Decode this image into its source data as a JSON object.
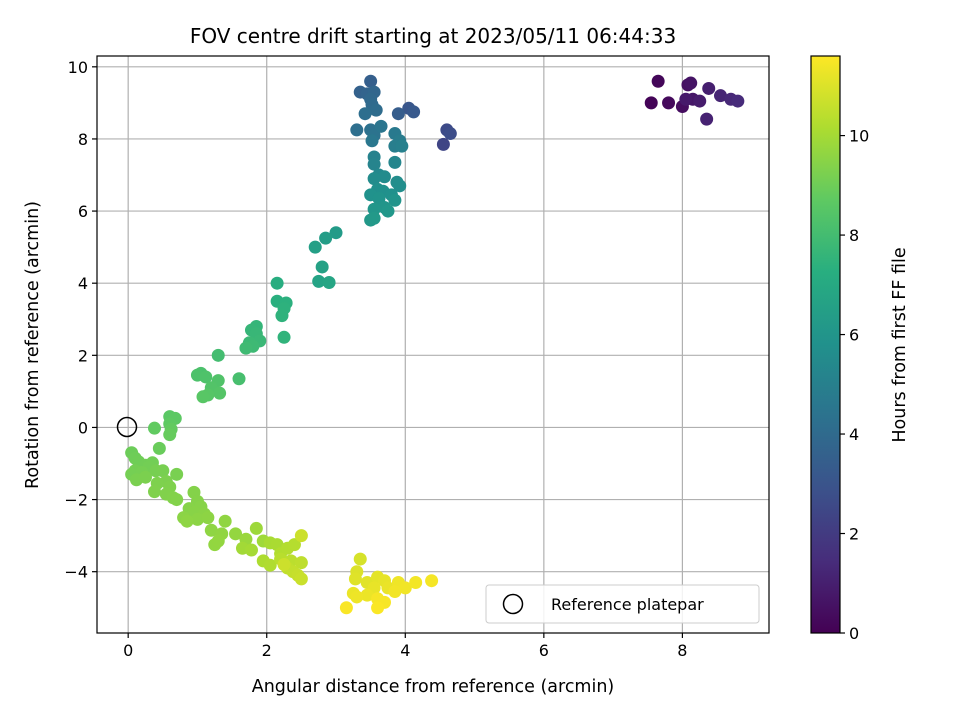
{
  "chart_data": {
    "type": "scatter",
    "title": "FOV centre drift starting at 2023/05/11 06:44:33",
    "xlabel": "Angular distance from reference (arcmin)",
    "ylabel": "Rotation from reference (arcmin)",
    "xlim": [
      -0.45,
      9.25
    ],
    "ylim": [
      -5.7,
      10.3
    ],
    "xticks": [
      0,
      2,
      4,
      6,
      8
    ],
    "yticks": [
      -4,
      -2,
      0,
      2,
      4,
      6,
      8,
      10
    ],
    "grid": true,
    "legend": {
      "position": "bottom-right",
      "entries": [
        "Reference platepar"
      ]
    },
    "reference_point": {
      "x": 0,
      "y": 0
    },
    "colorbar": {
      "label": "Hours from first FF file",
      "colormap": "viridis",
      "range": [
        0,
        11.6
      ],
      "ticks": [
        0,
        2,
        4,
        6,
        8,
        10
      ]
    },
    "points": [
      {
        "x": 7.55,
        "y": 9.0,
        "c": 0.1
      },
      {
        "x": 7.65,
        "y": 9.6,
        "c": 0.2
      },
      {
        "x": 7.8,
        "y": 9.0,
        "c": 0.3
      },
      {
        "x": 8.0,
        "y": 8.9,
        "c": 0.4
      },
      {
        "x": 8.08,
        "y": 9.5,
        "c": 0.5
      },
      {
        "x": 8.12,
        "y": 9.55,
        "c": 0.6
      },
      {
        "x": 8.15,
        "y": 9.1,
        "c": 0.7
      },
      {
        "x": 8.05,
        "y": 9.1,
        "c": 0.8
      },
      {
        "x": 8.25,
        "y": 9.05,
        "c": 0.9
      },
      {
        "x": 8.38,
        "y": 9.4,
        "c": 1.0
      },
      {
        "x": 8.35,
        "y": 8.55,
        "c": 1.1
      },
      {
        "x": 8.55,
        "y": 9.2,
        "c": 1.2
      },
      {
        "x": 8.7,
        "y": 9.1,
        "c": 1.3
      },
      {
        "x": 8.8,
        "y": 9.05,
        "c": 1.4
      },
      {
        "x": 4.55,
        "y": 7.85,
        "c": 2.4
      },
      {
        "x": 4.6,
        "y": 8.25,
        "c": 2.6
      },
      {
        "x": 4.65,
        "y": 8.15,
        "c": 2.7
      },
      {
        "x": 4.05,
        "y": 8.85,
        "c": 3.1
      },
      {
        "x": 4.12,
        "y": 8.75,
        "c": 3.2
      },
      {
        "x": 3.9,
        "y": 8.7,
        "c": 3.4
      },
      {
        "x": 3.5,
        "y": 9.6,
        "c": 3.5
      },
      {
        "x": 3.35,
        "y": 9.3,
        "c": 3.6
      },
      {
        "x": 3.45,
        "y": 9.25,
        "c": 3.7
      },
      {
        "x": 3.55,
        "y": 9.3,
        "c": 3.8
      },
      {
        "x": 3.5,
        "y": 9.1,
        "c": 3.9
      },
      {
        "x": 3.52,
        "y": 8.95,
        "c": 4.0
      },
      {
        "x": 3.58,
        "y": 8.8,
        "c": 4.1
      },
      {
        "x": 3.42,
        "y": 8.7,
        "c": 4.15
      },
      {
        "x": 3.3,
        "y": 8.25,
        "c": 4.2
      },
      {
        "x": 3.5,
        "y": 8.25,
        "c": 4.3
      },
      {
        "x": 3.55,
        "y": 8.1,
        "c": 4.4
      },
      {
        "x": 3.65,
        "y": 8.35,
        "c": 4.5
      },
      {
        "x": 3.52,
        "y": 7.95,
        "c": 4.6
      },
      {
        "x": 3.85,
        "y": 8.15,
        "c": 4.7
      },
      {
        "x": 3.92,
        "y": 7.95,
        "c": 4.8
      },
      {
        "x": 3.85,
        "y": 7.8,
        "c": 4.9
      },
      {
        "x": 3.95,
        "y": 7.8,
        "c": 5.0
      },
      {
        "x": 3.55,
        "y": 7.5,
        "c": 5.1
      },
      {
        "x": 3.55,
        "y": 7.3,
        "c": 5.2
      },
      {
        "x": 3.85,
        "y": 7.35,
        "c": 5.3
      },
      {
        "x": 3.62,
        "y": 7.0,
        "c": 5.4
      },
      {
        "x": 3.7,
        "y": 6.95,
        "c": 5.5
      },
      {
        "x": 3.55,
        "y": 6.9,
        "c": 5.55
      },
      {
        "x": 3.88,
        "y": 6.8,
        "c": 5.6
      },
      {
        "x": 3.92,
        "y": 6.7,
        "c": 5.65
      },
      {
        "x": 3.6,
        "y": 6.6,
        "c": 5.7
      },
      {
        "x": 3.68,
        "y": 6.55,
        "c": 5.75
      },
      {
        "x": 3.8,
        "y": 6.45,
        "c": 5.8
      },
      {
        "x": 3.5,
        "y": 6.45,
        "c": 5.85
      },
      {
        "x": 3.62,
        "y": 6.35,
        "c": 5.9
      },
      {
        "x": 3.85,
        "y": 6.3,
        "c": 5.95
      },
      {
        "x": 3.7,
        "y": 6.1,
        "c": 6.0
      },
      {
        "x": 3.55,
        "y": 6.05,
        "c": 6.05
      },
      {
        "x": 3.75,
        "y": 6.0,
        "c": 6.1
      },
      {
        "x": 3.5,
        "y": 5.75,
        "c": 6.15
      },
      {
        "x": 3.55,
        "y": 5.8,
        "c": 6.2
      },
      {
        "x": 3.0,
        "y": 5.4,
        "c": 6.3
      },
      {
        "x": 2.85,
        "y": 5.25,
        "c": 6.4
      },
      {
        "x": 2.7,
        "y": 5.0,
        "c": 6.5
      },
      {
        "x": 2.8,
        "y": 4.45,
        "c": 6.6
      },
      {
        "x": 2.75,
        "y": 4.05,
        "c": 6.7
      },
      {
        "x": 2.9,
        "y": 4.02,
        "c": 6.8
      },
      {
        "x": 2.15,
        "y": 4.0,
        "c": 7.2
      },
      {
        "x": 2.15,
        "y": 3.5,
        "c": 7.3
      },
      {
        "x": 2.28,
        "y": 3.45,
        "c": 7.35
      },
      {
        "x": 2.25,
        "y": 3.3,
        "c": 7.4
      },
      {
        "x": 2.22,
        "y": 3.1,
        "c": 7.45
      },
      {
        "x": 2.25,
        "y": 2.5,
        "c": 7.5
      },
      {
        "x": 1.85,
        "y": 2.8,
        "c": 7.6
      },
      {
        "x": 1.78,
        "y": 2.7,
        "c": 7.65
      },
      {
        "x": 1.85,
        "y": 2.6,
        "c": 7.7
      },
      {
        "x": 1.9,
        "y": 2.4,
        "c": 7.75
      },
      {
        "x": 1.75,
        "y": 2.35,
        "c": 7.8
      },
      {
        "x": 1.8,
        "y": 2.25,
        "c": 7.85
      },
      {
        "x": 1.7,
        "y": 2.2,
        "c": 7.9
      },
      {
        "x": 1.3,
        "y": 2.0,
        "c": 8.0
      },
      {
        "x": 1.6,
        "y": 1.35,
        "c": 8.1
      },
      {
        "x": 1.05,
        "y": 1.5,
        "c": 8.2
      },
      {
        "x": 1.0,
        "y": 1.45,
        "c": 8.25
      },
      {
        "x": 1.12,
        "y": 1.4,
        "c": 8.3
      },
      {
        "x": 1.3,
        "y": 1.3,
        "c": 8.35
      },
      {
        "x": 1.2,
        "y": 1.1,
        "c": 8.4
      },
      {
        "x": 1.32,
        "y": 0.95,
        "c": 8.45
      },
      {
        "x": 1.15,
        "y": 0.9,
        "c": 8.5
      },
      {
        "x": 1.08,
        "y": 0.85,
        "c": 8.55
      },
      {
        "x": 0.6,
        "y": 0.3,
        "c": 8.6
      },
      {
        "x": 0.68,
        "y": 0.25,
        "c": 8.65
      },
      {
        "x": 0.6,
        "y": 0.1,
        "c": 8.7
      },
      {
        "x": 0.38,
        "y": -0.02,
        "c": 8.75
      },
      {
        "x": 0.62,
        "y": -0.05,
        "c": 8.8
      },
      {
        "x": 0.6,
        "y": -0.2,
        "c": 8.85
      },
      {
        "x": 0.45,
        "y": -0.58,
        "c": 8.9
      },
      {
        "x": 0.05,
        "y": -0.7,
        "c": 8.95
      },
      {
        "x": 0.1,
        "y": -0.85,
        "c": 9.0
      },
      {
        "x": 0.15,
        "y": -0.95,
        "c": 9.02
      },
      {
        "x": 0.25,
        "y": -1.05,
        "c": 9.04
      },
      {
        "x": 0.35,
        "y": -0.98,
        "c": 9.06
      },
      {
        "x": 0.3,
        "y": -1.1,
        "c": 9.08
      },
      {
        "x": 0.1,
        "y": -1.2,
        "c": 9.1
      },
      {
        "x": 0.05,
        "y": -1.3,
        "c": 9.12
      },
      {
        "x": 0.2,
        "y": -1.25,
        "c": 9.14
      },
      {
        "x": 0.4,
        "y": -1.2,
        "c": 9.16
      },
      {
        "x": 0.5,
        "y": -1.2,
        "c": 9.18
      },
      {
        "x": 0.7,
        "y": -1.3,
        "c": 9.2
      },
      {
        "x": 0.12,
        "y": -1.45,
        "c": 9.22
      },
      {
        "x": 0.25,
        "y": -1.38,
        "c": 9.24
      },
      {
        "x": 0.55,
        "y": -1.5,
        "c": 9.26
      },
      {
        "x": 0.42,
        "y": -1.55,
        "c": 9.28
      },
      {
        "x": 0.6,
        "y": -1.65,
        "c": 9.3
      },
      {
        "x": 0.38,
        "y": -1.78,
        "c": 9.32
      },
      {
        "x": 0.55,
        "y": -1.85,
        "c": 9.34
      },
      {
        "x": 0.65,
        "y": -1.95,
        "c": 9.36
      },
      {
        "x": 0.7,
        "y": -2.0,
        "c": 9.38
      },
      {
        "x": 0.95,
        "y": -1.8,
        "c": 9.4
      },
      {
        "x": 1.0,
        "y": -2.05,
        "c": 9.42
      },
      {
        "x": 0.88,
        "y": -2.25,
        "c": 9.44
      },
      {
        "x": 1.05,
        "y": -2.2,
        "c": 9.46
      },
      {
        "x": 0.95,
        "y": -2.35,
        "c": 9.48
      },
      {
        "x": 1.1,
        "y": -2.4,
        "c": 9.5
      },
      {
        "x": 0.8,
        "y": -2.5,
        "c": 9.52
      },
      {
        "x": 1.0,
        "y": -2.55,
        "c": 9.54
      },
      {
        "x": 1.15,
        "y": -2.5,
        "c": 9.56
      },
      {
        "x": 0.85,
        "y": -2.6,
        "c": 9.58
      },
      {
        "x": 1.2,
        "y": -2.85,
        "c": 9.6
      },
      {
        "x": 1.4,
        "y": -2.6,
        "c": 9.62
      },
      {
        "x": 1.35,
        "y": -2.95,
        "c": 9.64
      },
      {
        "x": 1.25,
        "y": -3.25,
        "c": 9.66
      },
      {
        "x": 1.3,
        "y": -3.15,
        "c": 9.68
      },
      {
        "x": 1.55,
        "y": -2.95,
        "c": 9.7
      },
      {
        "x": 1.7,
        "y": -3.1,
        "c": 9.8
      },
      {
        "x": 1.85,
        "y": -2.8,
        "c": 9.85
      },
      {
        "x": 1.95,
        "y": -3.15,
        "c": 9.9
      },
      {
        "x": 1.65,
        "y": -3.35,
        "c": 9.95
      },
      {
        "x": 1.78,
        "y": -3.4,
        "c": 10.0
      },
      {
        "x": 2.05,
        "y": -3.2,
        "c": 10.05
      },
      {
        "x": 2.15,
        "y": -3.25,
        "c": 10.1
      },
      {
        "x": 1.95,
        "y": -3.7,
        "c": 10.15
      },
      {
        "x": 2.05,
        "y": -3.82,
        "c": 10.2
      },
      {
        "x": 2.2,
        "y": -3.5,
        "c": 10.22
      },
      {
        "x": 2.3,
        "y": -3.35,
        "c": 10.25
      },
      {
        "x": 2.4,
        "y": -3.25,
        "c": 10.3
      },
      {
        "x": 2.2,
        "y": -3.65,
        "c": 10.35
      },
      {
        "x": 2.35,
        "y": -3.7,
        "c": 10.4
      },
      {
        "x": 2.5,
        "y": -3.75,
        "c": 10.45
      },
      {
        "x": 2.3,
        "y": -3.9,
        "c": 10.5
      },
      {
        "x": 2.38,
        "y": -4.0,
        "c": 10.55
      },
      {
        "x": 2.45,
        "y": -4.1,
        "c": 10.6
      },
      {
        "x": 2.5,
        "y": -4.2,
        "c": 10.65
      },
      {
        "x": 2.5,
        "y": -3.0,
        "c": 10.7
      },
      {
        "x": 2.25,
        "y": -3.8,
        "c": 10.72
      },
      {
        "x": 3.35,
        "y": -3.65,
        "c": 10.9
      },
      {
        "x": 3.3,
        "y": -4.0,
        "c": 11.0
      },
      {
        "x": 3.28,
        "y": -4.2,
        "c": 11.05
      },
      {
        "x": 3.45,
        "y": -4.3,
        "c": 11.1
      },
      {
        "x": 3.6,
        "y": -4.15,
        "c": 11.15
      },
      {
        "x": 3.7,
        "y": -4.25,
        "c": 11.2
      },
      {
        "x": 3.55,
        "y": -4.45,
        "c": 11.22
      },
      {
        "x": 3.75,
        "y": -4.45,
        "c": 11.25
      },
      {
        "x": 3.25,
        "y": -4.6,
        "c": 11.28
      },
      {
        "x": 3.45,
        "y": -4.65,
        "c": 11.3
      },
      {
        "x": 3.3,
        "y": -4.7,
        "c": 11.33
      },
      {
        "x": 3.9,
        "y": -4.3,
        "c": 11.35
      },
      {
        "x": 4.0,
        "y": -4.45,
        "c": 11.38
      },
      {
        "x": 3.85,
        "y": -4.55,
        "c": 11.4
      },
      {
        "x": 4.15,
        "y": -4.3,
        "c": 11.42
      },
      {
        "x": 4.38,
        "y": -4.25,
        "c": 11.45
      },
      {
        "x": 3.6,
        "y": -4.75,
        "c": 11.48
      },
      {
        "x": 3.7,
        "y": -4.85,
        "c": 11.5
      },
      {
        "x": 3.15,
        "y": -5.0,
        "c": 11.52
      },
      {
        "x": 3.6,
        "y": -5.0,
        "c": 11.55
      }
    ]
  }
}
